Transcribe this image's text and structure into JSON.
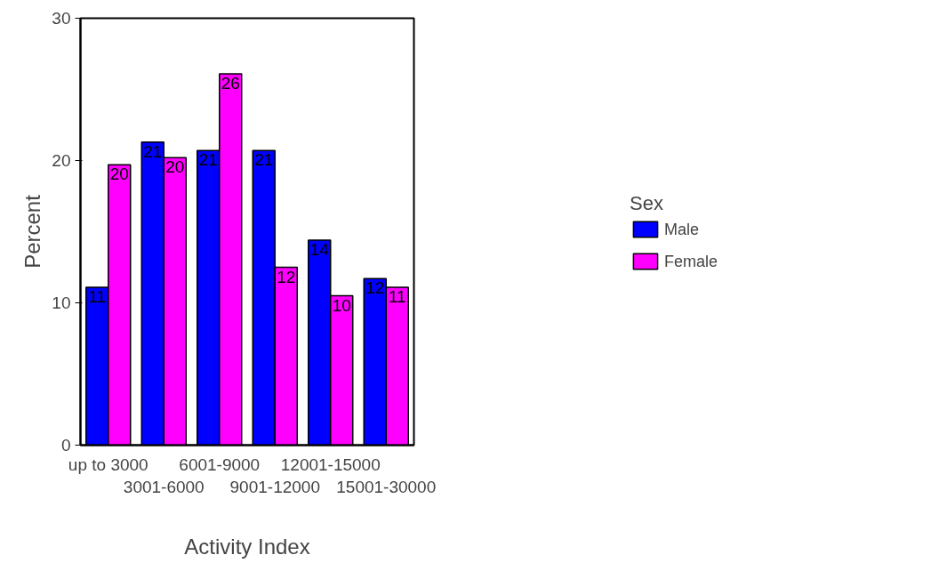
{
  "chart_data": {
    "type": "bar",
    "xlabel": "Activity Index",
    "ylabel": "Percent",
    "legend_title": "Sex",
    "legend": "right",
    "grid": false,
    "categories": [
      "up to 3000",
      "3001-6000",
      "6001-9000",
      "9001-12000",
      "12001-15000",
      "15001-30000"
    ],
    "ylim": [
      0,
      30
    ],
    "yticks": [
      0,
      10,
      20,
      30
    ],
    "series": [
      {
        "name": "Male",
        "color": "#0000ff",
        "values": [
          11.1,
          21.3,
          20.7,
          20.7,
          14.4,
          11.7
        ],
        "value_labels": [
          "11",
          "21",
          "21",
          "21",
          "14",
          "12"
        ]
      },
      {
        "name": "Female",
        "color": "#ff00ff",
        "values": [
          19.7,
          20.2,
          26.1,
          12.5,
          10.5,
          11.1
        ],
        "value_labels": [
          "20",
          "20",
          "26",
          "12",
          "10",
          "11"
        ]
      }
    ]
  }
}
